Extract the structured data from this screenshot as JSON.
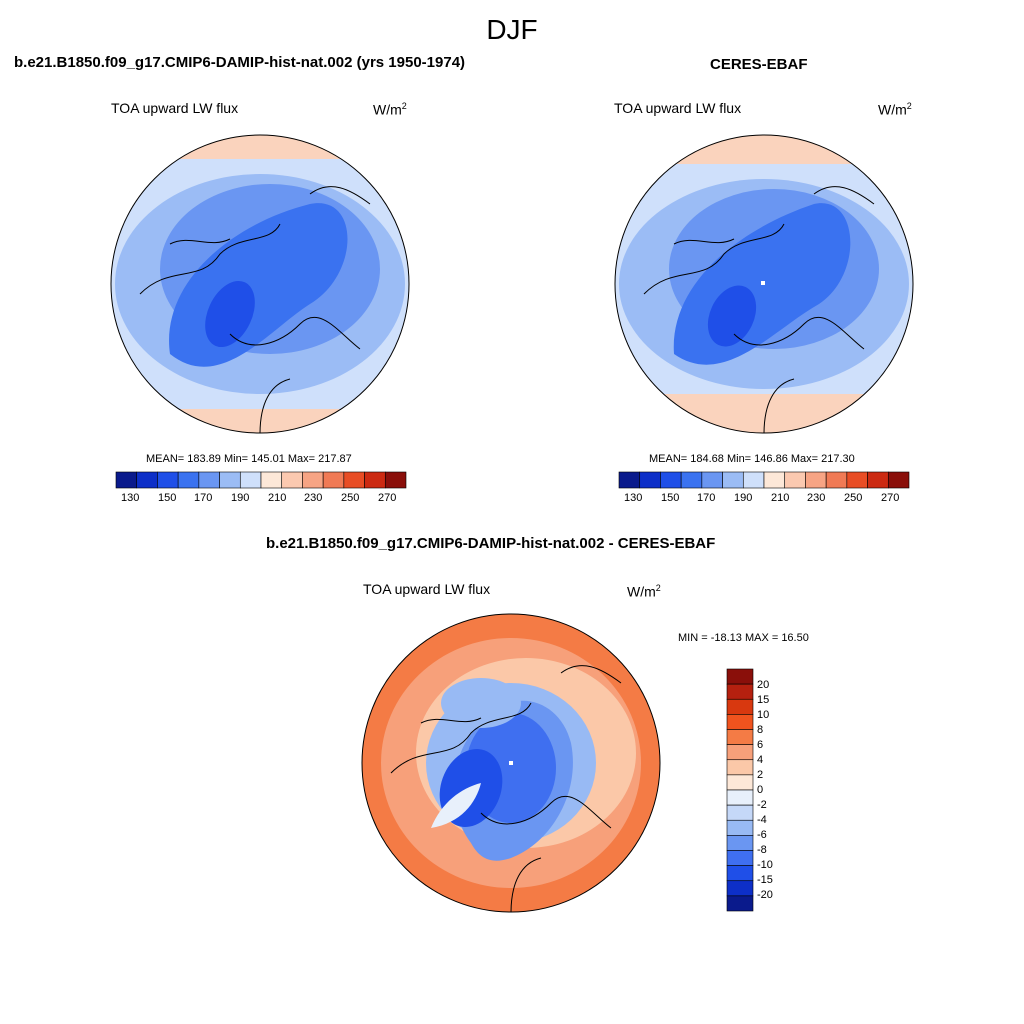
{
  "figure": {
    "title": "DJF"
  },
  "panels": [
    {
      "title": "b.e21.B1850.f09_g17.CMIP6-DAMIP-hist-nat.002 (yrs 1950-1974)",
      "variable": "TOA upward LW flux",
      "units_base": "W/m",
      "units_sup": "2",
      "stats": "MEAN= 183.89  Min= 145.01  Max= 217.87",
      "colorbar_ticks": [
        "130",
        "150",
        "170",
        "190",
        "210",
        "230",
        "250",
        "270"
      ]
    },
    {
      "title": "CERES-EBAF",
      "variable": "TOA upward LW flux",
      "units_base": "W/m",
      "units_sup": "2",
      "stats": "MEAN= 184.68  Min= 146.86  Max= 217.30",
      "colorbar_ticks": [
        "130",
        "150",
        "170",
        "190",
        "210",
        "230",
        "250",
        "270"
      ]
    },
    {
      "title": "b.e21.B1850.f09_g17.CMIP6-DAMIP-hist-nat.002 - CERES-EBAF",
      "variable": "TOA upward LW flux",
      "units_base": "W/m",
      "units_sup": "2",
      "stats": "MIN = -18.13 MAX =  16.50",
      "colorbar_ticks": [
        "20",
        "15",
        "10",
        "8",
        "6",
        "4",
        "2",
        "0",
        "-2",
        "-4",
        "-6",
        "-8",
        "-10",
        "-15",
        "-20"
      ]
    }
  ],
  "colors": {
    "abs_scale": [
      "#0a1a8c",
      "#0d2fc8",
      "#1f4fe8",
      "#3a72f0",
      "#6a96f2",
      "#9bbcf5",
      "#cfe0fb",
      "#fde8d8",
      "#fbc9b0",
      "#f7a484",
      "#f07a55",
      "#e84d25",
      "#cc2a12",
      "#8a0f0a"
    ],
    "diff_scale": [
      "#8a0f0a",
      "#b5200f",
      "#d8380f",
      "#f0531e",
      "#f47b45",
      "#f7a07a",
      "#fbc8a8",
      "#fde8d8",
      "#e8f0fb",
      "#c5d8f8",
      "#98baf4",
      "#6a96f2",
      "#3f6ff0",
      "#1f4fe8",
      "#0d2fc8",
      "#0a1a8c"
    ],
    "map_blue_deep": "#2f5fe6",
    "map_blue_mid": "#5c8cf0",
    "map_blue_light": "#b8d0f8",
    "map_orange": "#f08a60",
    "map_peach": "#fad3bd"
  }
}
